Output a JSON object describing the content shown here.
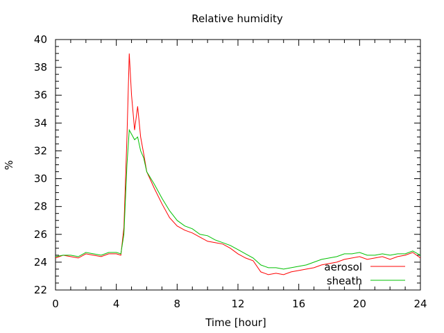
{
  "chart_data": {
    "type": "line",
    "title": "Relative humidity",
    "xlabel": "Time [hour]",
    "ylabel": "%",
    "xlim": [
      0,
      24
    ],
    "ylim": [
      22,
      40
    ],
    "xticks": [
      "0",
      "4",
      "8",
      "12",
      "16",
      "20",
      "24"
    ],
    "yticks": [
      "22",
      "24",
      "26",
      "28",
      "30",
      "32",
      "34",
      "36",
      "38",
      "40"
    ],
    "grid": false,
    "legend_position": "bottom-right",
    "x": [
      0,
      0.5,
      1,
      1.5,
      2,
      2.5,
      3,
      3.5,
      4,
      4.3,
      4.5,
      4.7,
      4.85,
      5,
      5.2,
      5.4,
      5.6,
      5.8,
      6,
      6.5,
      7,
      7.5,
      8,
      8.5,
      9,
      9.5,
      10,
      10.5,
      11,
      11.5,
      12,
      12.5,
      13,
      13.5,
      14,
      14.5,
      15,
      15.5,
      16,
      16.5,
      17,
      17.5,
      18,
      18.5,
      19,
      19.5,
      20,
      20.5,
      21,
      21.5,
      22,
      22.5,
      23,
      23.5,
      24
    ],
    "series": [
      {
        "name": "aerosol",
        "color": "#ff0000",
        "values": [
          24.3,
          24.5,
          24.4,
          24.3,
          24.6,
          24.5,
          24.4,
          24.6,
          24.6,
          24.5,
          26.5,
          33.0,
          39.0,
          36.0,
          33.5,
          35.2,
          33.0,
          31.8,
          30.5,
          29.3,
          28.2,
          27.2,
          26.6,
          26.3,
          26.1,
          25.8,
          25.5,
          25.4,
          25.3,
          25.0,
          24.6,
          24.3,
          24.1,
          23.3,
          23.1,
          23.2,
          23.1,
          23.3,
          23.4,
          23.5,
          23.6,
          23.8,
          23.9,
          24.0,
          24.2,
          24.3,
          24.4,
          24.2,
          24.3,
          24.4,
          24.2,
          24.4,
          24.5,
          24.7,
          24.3
        ]
      },
      {
        "name": "sheath",
        "color": "#00c000",
        "values": [
          24.4,
          24.5,
          24.5,
          24.4,
          24.7,
          24.6,
          24.5,
          24.7,
          24.7,
          24.6,
          26.0,
          31.0,
          33.5,
          33.2,
          32.8,
          33.0,
          32.0,
          31.5,
          30.5,
          29.6,
          28.6,
          27.7,
          27.0,
          26.6,
          26.4,
          26.0,
          25.9,
          25.6,
          25.4,
          25.2,
          24.9,
          24.6,
          24.3,
          23.8,
          23.6,
          23.6,
          23.5,
          23.6,
          23.7,
          23.8,
          24.0,
          24.2,
          24.3,
          24.4,
          24.6,
          24.6,
          24.7,
          24.5,
          24.5,
          24.6,
          24.5,
          24.6,
          24.6,
          24.8,
          24.5
        ]
      }
    ]
  }
}
